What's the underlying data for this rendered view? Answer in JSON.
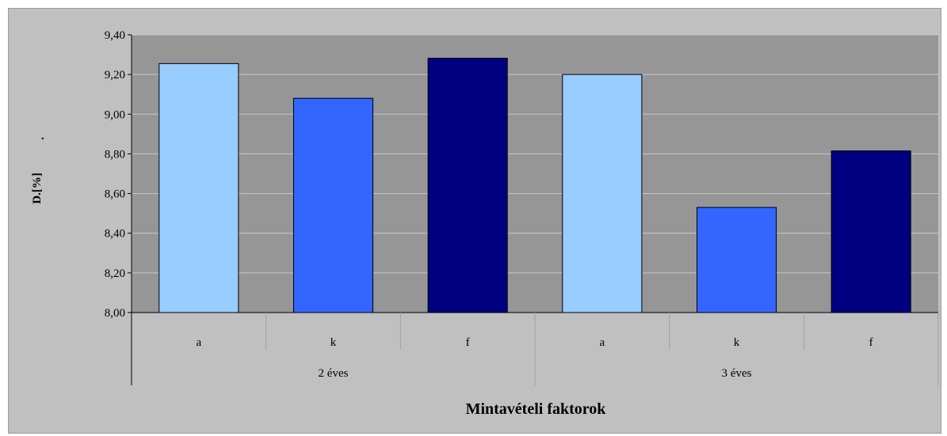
{
  "chart_data": {
    "type": "bar",
    "ylabel": "D.[%]",
    "ylabel_suffix": ".",
    "xlabel": "Mintavételi faktorok",
    "ylim": [
      8.0,
      9.4
    ],
    "ytick_step": 0.2,
    "yticks": [
      "8,00",
      "8,20",
      "8,40",
      "8,60",
      "8,80",
      "9,00",
      "9,20",
      "9,40"
    ],
    "grid": true,
    "legend": "none",
    "categories": [
      "a",
      "k",
      "f",
      "a",
      "k",
      "f"
    ],
    "groups": [
      {
        "label": "2 éves",
        "span": 3
      },
      {
        "label": "3 éves",
        "span": 3
      }
    ],
    "values": [
      9.255,
      9.08,
      9.282,
      9.2,
      8.53,
      8.815
    ],
    "bar_colors": [
      "#99ccff",
      "#3366ff",
      "#000080",
      "#99ccff",
      "#3366ff",
      "#000080"
    ],
    "plot_background": "#969696",
    "chart_background": "#c0c0c0",
    "gridline_color": "#c8c8c8"
  }
}
